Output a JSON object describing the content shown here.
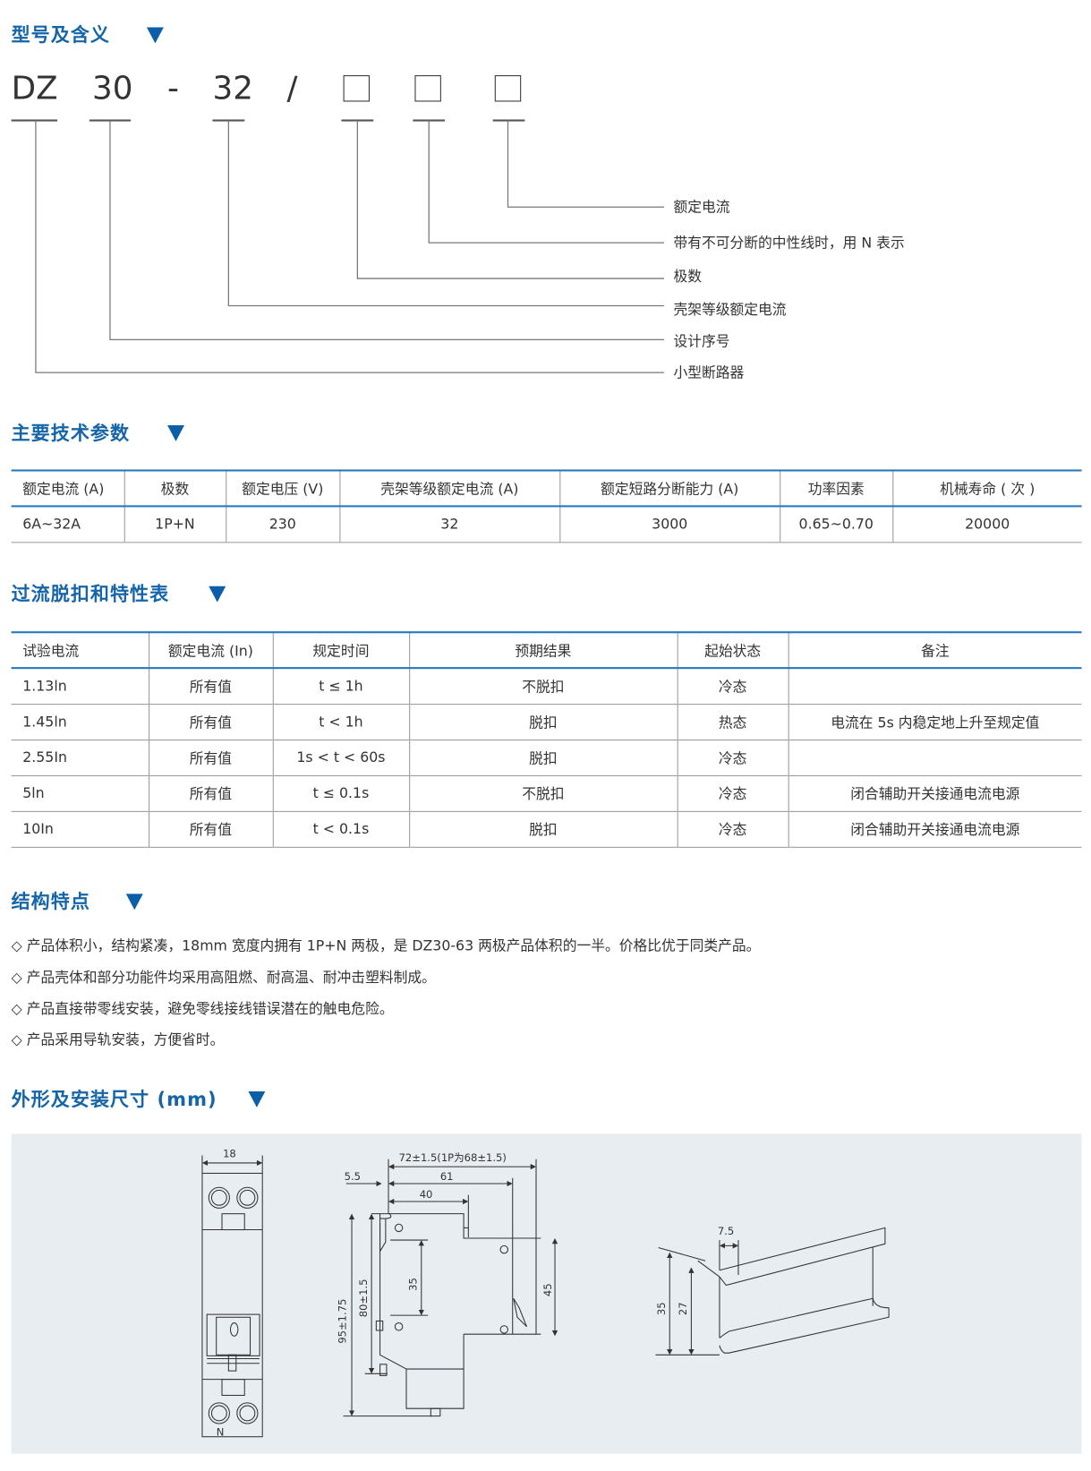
{
  "sections": {
    "model": {
      "title": "型号及含义"
    },
    "specs": {
      "title": "主要技术参数"
    },
    "trip": {
      "title": "过流脱扣和特性表"
    },
    "features": {
      "title": "结构特点"
    },
    "dims": {
      "title": "外形及安装尺寸 (mm)"
    }
  },
  "model_code": {
    "p1": "DZ",
    "p2": "30",
    "dash": "-",
    "p3": "32",
    "slash": "/"
  },
  "model_legend": [
    "额定电流",
    "带有不可分断的中性线时，用 N 表示",
    "极数",
    "壳架等级额定电流",
    "设计序号",
    "小型断路器"
  ],
  "spec_table": {
    "headers": [
      "额定电流 (A)",
      "极数",
      "额定电压 (V)",
      "壳架等级额定电流 (A)",
      "额定短路分断能力 (A)",
      "功率因素",
      "机械寿命 ( 次 )"
    ],
    "row": [
      "6A~32A",
      "1P+N",
      "230",
      "32",
      "3000",
      "0.65~0.70",
      "20000"
    ]
  },
  "trip_table": {
    "headers": [
      "试验电流",
      "额定电流 (In)",
      "规定时间",
      "预期结果",
      "起始状态",
      "备注"
    ],
    "rows": [
      [
        "1.13ln",
        "所有值",
        "t ≤ 1h",
        "不脱扣",
        "冷态",
        ""
      ],
      [
        "1.45ln",
        "所有值",
        "t < 1h",
        "脱扣",
        "热态",
        "电流在 5s 内稳定地上升至规定值"
      ],
      [
        "2.55In",
        "所有值",
        "1s < t < 60s",
        "脱扣",
        "冷态",
        ""
      ],
      [
        "5ln",
        "所有值",
        "t ≤ 0.1s",
        "不脱扣",
        "冷态",
        "闭合辅助开关接通电流电源"
      ],
      [
        "10In",
        "所有值",
        "t < 0.1s",
        "脱扣",
        "冷态",
        "闭合辅助开关接通电流电源"
      ]
    ]
  },
  "features": [
    "◇ 产品体积小，结构紧凑，18mm 宽度内拥有 1P+N 两极，是 DZ30-63 两极产品体积的一半。价格比优于同类产品。",
    "◇ 产品壳体和部分功能件均采用高阻燃、耐高温、耐冲击塑料制成。",
    "◇ 产品直接带零线安装，避免零线接线错误潜在的触电危险。",
    "◇ 产品采用导轨安装，方便省时。"
  ],
  "dimensions": {
    "front_width": "18",
    "front_n": "N",
    "total_depth": "72±1.5(1P为68±1.5)",
    "depth_61": "61",
    "depth_40": "40",
    "offset": "5.5",
    "height_95": "95±1.75",
    "height_80": "80±1.5",
    "height_35": "35",
    "height_45": "45",
    "rail_flange": "7.5",
    "rail_35": "35",
    "rail_27": "27"
  },
  "colors": {
    "accent": "#1565a8",
    "drawing_bg": "#e8edf2"
  }
}
